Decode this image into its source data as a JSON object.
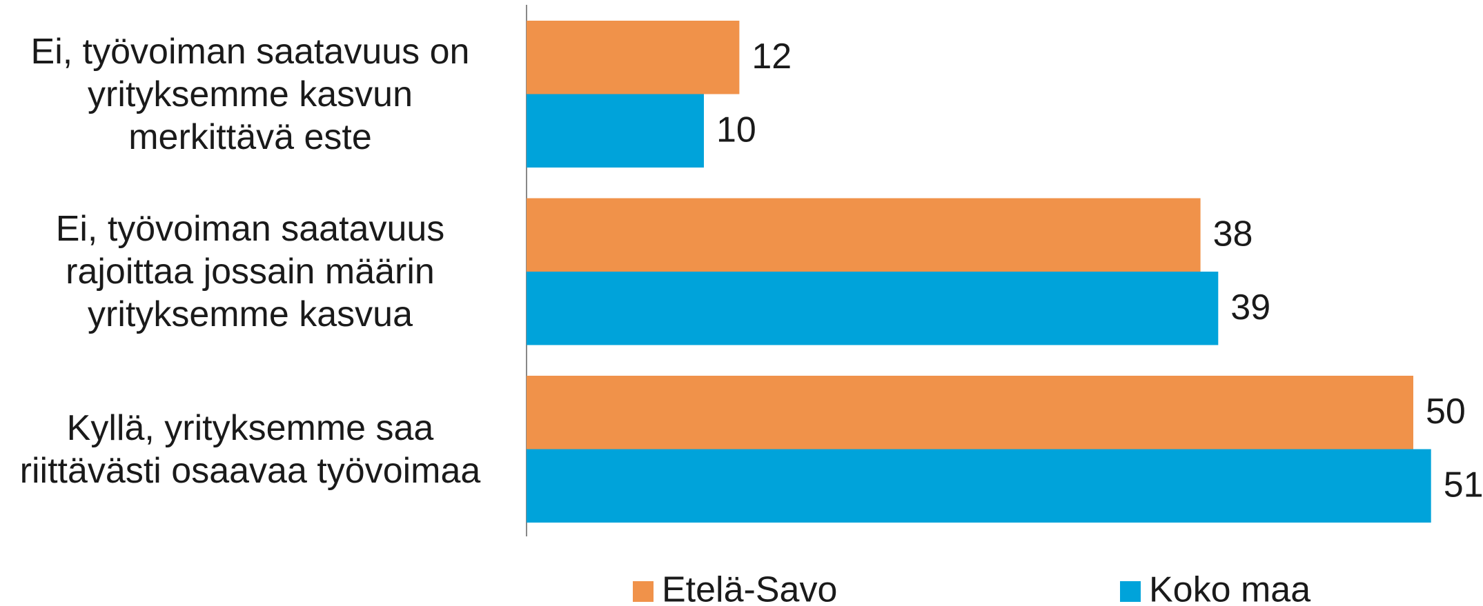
{
  "chart_data": {
    "type": "barh",
    "categories": [
      "Ei, työvoiman saatavuus on yrityksemme kasvun merkittävä este",
      "Ei, työvoiman saatavuus rajoittaa jossain määrin yrityksemme kasvua",
      "Kyllä, yrityksemme saa riittävästi osaavaa työvoimaa"
    ],
    "series": [
      {
        "name": "Etelä-Savo",
        "color": "#f0924a",
        "values": [
          12,
          38,
          50
        ]
      },
      {
        "name": "Koko maa",
        "color": "#00a3da",
        "values": [
          10,
          39,
          51
        ]
      }
    ]
  }
}
